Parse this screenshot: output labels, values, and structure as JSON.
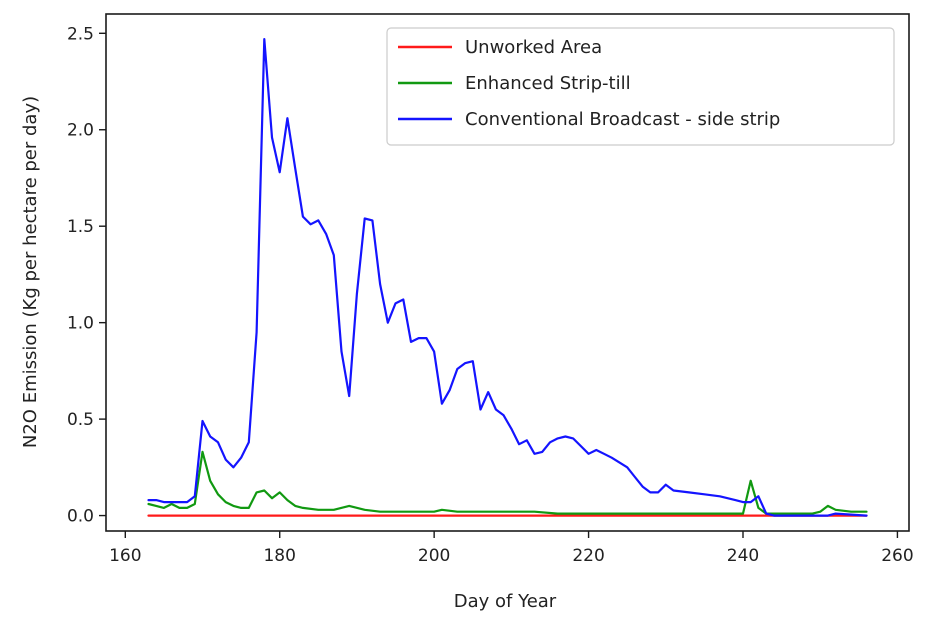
{
  "chart_data": {
    "type": "line",
    "title": "",
    "xlabel": "Day of Year",
    "ylabel": "N2O Emission (Kg per hectare per day)",
    "xlim": [
      157.5,
      261.5
    ],
    "ylim": [
      -0.08,
      2.6
    ],
    "xticks": [
      160,
      180,
      200,
      220,
      240,
      260
    ],
    "yticks": [
      0.0,
      0.5,
      1.0,
      1.5,
      2.0,
      2.5
    ],
    "xtick_labels": [
      "160",
      "180",
      "200",
      "220",
      "240",
      "260"
    ],
    "ytick_labels": [
      "0.0",
      "0.5",
      "1.0",
      "1.5",
      "2.0",
      "2.5"
    ],
    "grid": false,
    "legend_position": "top-right",
    "series": [
      {
        "name": "Unworked Area",
        "color": "#ff1a1a",
        "points": [
          [
            163,
            0.0
          ],
          [
            256,
            0.0
          ]
        ]
      },
      {
        "name": "Enhanced Strip-till",
        "color": "#119911",
        "points": [
          [
            163,
            0.06
          ],
          [
            164,
            0.05
          ],
          [
            165,
            0.04
          ],
          [
            166,
            0.06
          ],
          [
            167,
            0.04
          ],
          [
            168,
            0.04
          ],
          [
            169,
            0.06
          ],
          [
            170,
            0.33
          ],
          [
            171,
            0.18
          ],
          [
            172,
            0.11
          ],
          [
            173,
            0.07
          ],
          [
            174,
            0.05
          ],
          [
            175,
            0.04
          ],
          [
            176,
            0.04
          ],
          [
            177,
            0.12
          ],
          [
            178,
            0.13
          ],
          [
            179,
            0.09
          ],
          [
            180,
            0.12
          ],
          [
            181,
            0.08
          ],
          [
            182,
            0.05
          ],
          [
            183,
            0.04
          ],
          [
            185,
            0.03
          ],
          [
            187,
            0.03
          ],
          [
            189,
            0.05
          ],
          [
            191,
            0.03
          ],
          [
            193,
            0.02
          ],
          [
            196,
            0.02
          ],
          [
            200,
            0.02
          ],
          [
            201,
            0.03
          ],
          [
            203,
            0.02
          ],
          [
            206,
            0.02
          ],
          [
            210,
            0.02
          ],
          [
            213,
            0.02
          ],
          [
            216,
            0.01
          ],
          [
            220,
            0.01
          ],
          [
            223,
            0.01
          ],
          [
            226,
            0.01
          ],
          [
            230,
            0.01
          ],
          [
            235,
            0.01
          ],
          [
            240,
            0.01
          ],
          [
            241,
            0.18
          ],
          [
            242,
            0.04
          ],
          [
            243,
            0.01
          ],
          [
            246,
            0.01
          ],
          [
            249,
            0.01
          ],
          [
            250,
            0.02
          ],
          [
            251,
            0.05
          ],
          [
            252,
            0.03
          ],
          [
            254,
            0.02
          ],
          [
            256,
            0.02
          ]
        ]
      },
      {
        "name": "Conventional Broadcast - side strip",
        "color": "#1414ff",
        "points": [
          [
            163,
            0.08
          ],
          [
            164,
            0.08
          ],
          [
            165,
            0.07
          ],
          [
            166,
            0.07
          ],
          [
            167,
            0.07
          ],
          [
            168,
            0.07
          ],
          [
            169,
            0.1
          ],
          [
            170,
            0.49
          ],
          [
            171,
            0.41
          ],
          [
            172,
            0.38
          ],
          [
            173,
            0.29
          ],
          [
            174,
            0.25
          ],
          [
            175,
            0.3
          ],
          [
            176,
            0.38
          ],
          [
            177,
            0.95
          ],
          [
            178,
            2.47
          ],
          [
            179,
            1.96
          ],
          [
            180,
            1.78
          ],
          [
            181,
            2.06
          ],
          [
            182,
            1.8
          ],
          [
            183,
            1.55
          ],
          [
            184,
            1.51
          ],
          [
            185,
            1.53
          ],
          [
            186,
            1.46
          ],
          [
            187,
            1.35
          ],
          [
            188,
            0.85
          ],
          [
            189,
            0.62
          ],
          [
            190,
            1.15
          ],
          [
            191,
            1.54
          ],
          [
            192,
            1.53
          ],
          [
            193,
            1.2
          ],
          [
            194,
            1.0
          ],
          [
            195,
            1.1
          ],
          [
            196,
            1.12
          ],
          [
            197,
            0.9
          ],
          [
            198,
            0.92
          ],
          [
            199,
            0.92
          ],
          [
            200,
            0.85
          ],
          [
            201,
            0.58
          ],
          [
            202,
            0.65
          ],
          [
            203,
            0.76
          ],
          [
            204,
            0.79
          ],
          [
            205,
            0.8
          ],
          [
            206,
            0.55
          ],
          [
            207,
            0.64
          ],
          [
            208,
            0.55
          ],
          [
            209,
            0.52
          ],
          [
            210,
            0.45
          ],
          [
            211,
            0.37
          ],
          [
            212,
            0.39
          ],
          [
            213,
            0.32
          ],
          [
            214,
            0.33
          ],
          [
            215,
            0.38
          ],
          [
            216,
            0.4
          ],
          [
            217,
            0.41
          ],
          [
            218,
            0.4
          ],
          [
            219,
            0.36
          ],
          [
            220,
            0.32
          ],
          [
            221,
            0.34
          ],
          [
            222,
            0.32
          ],
          [
            223,
            0.3
          ],
          [
            225,
            0.25
          ],
          [
            226,
            0.2
          ],
          [
            227,
            0.15
          ],
          [
            228,
            0.12
          ],
          [
            229,
            0.12
          ],
          [
            230,
            0.16
          ],
          [
            231,
            0.13
          ],
          [
            233,
            0.12
          ],
          [
            235,
            0.11
          ],
          [
            237,
            0.1
          ],
          [
            239,
            0.08
          ],
          [
            240,
            0.07
          ],
          [
            241,
            0.07
          ],
          [
            242,
            0.1
          ],
          [
            243,
            0.01
          ],
          [
            244,
            0.0
          ],
          [
            248,
            0.0
          ],
          [
            251,
            0.0
          ],
          [
            252,
            0.01
          ],
          [
            256,
            0.0
          ]
        ]
      }
    ]
  }
}
